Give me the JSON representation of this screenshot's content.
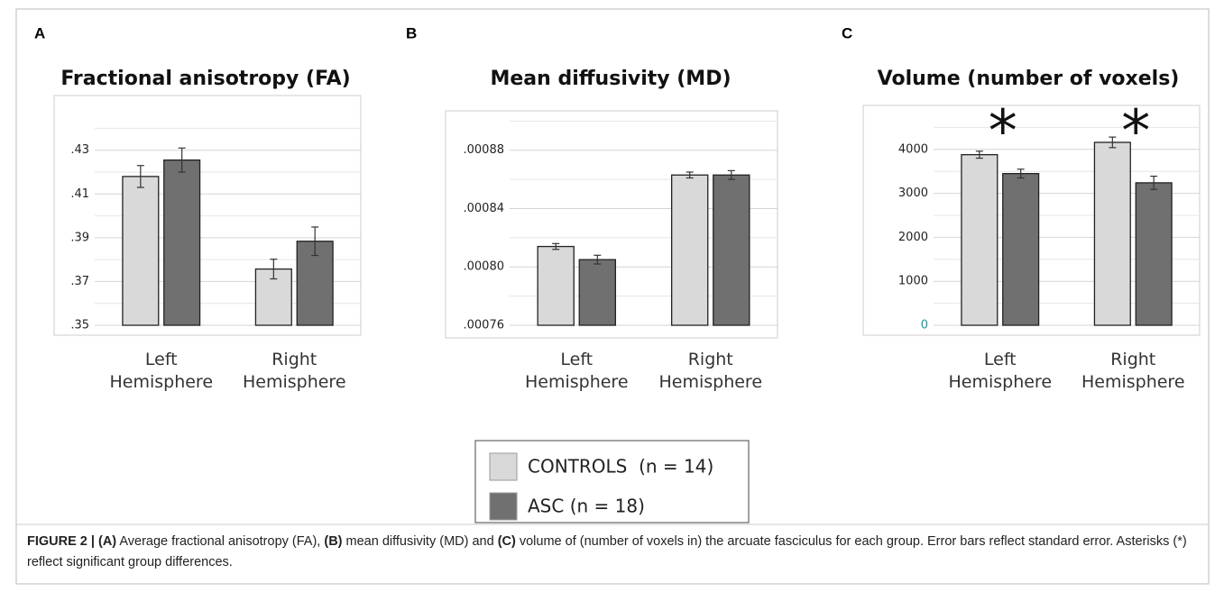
{
  "panels": [
    "A",
    "B",
    "C"
  ],
  "chart_data": [
    {
      "type": "bar",
      "title": "Fractional anisotropy (FA)",
      "categories": [
        "Left Hemisphere",
        "Right Hemisphere"
      ],
      "series": [
        {
          "values": [
            0.418,
            0.3757
          ],
          "errors": [
            0.005,
            0.0045
          ]
        },
        {
          "values": [
            0.4255,
            0.3884
          ],
          "errors": [
            0.0055,
            0.0065
          ]
        }
      ],
      "ylim": [
        0.35,
        0.455
      ],
      "yticks": [
        {
          "value": 0.35,
          "label": ".35"
        },
        {
          "value": 0.37,
          "label": ".37"
        },
        {
          "value": 0.39,
          "label": ".39"
        },
        {
          "value": 0.41,
          "label": ".41"
        },
        {
          "value": 0.43,
          "label": ".43"
        }
      ],
      "minor_yticks": [
        0.36,
        0.38,
        0.4,
        0.42,
        0.44
      ],
      "grid": true
    },
    {
      "type": "bar",
      "title": "Mean diffusivity (MD)",
      "categories": [
        "Left Hemisphere",
        "Right Hemisphere"
      ],
      "series": [
        {
          "values": [
            0.000814,
            0.000863
          ],
          "errors": [
            2e-06,
            2e-06
          ]
        },
        {
          "values": [
            0.000805,
            0.000863
          ],
          "errors": [
            3e-06,
            3e-06
          ]
        }
      ],
      "ylim": [
        0.00076,
        0.000907
      ],
      "yticks": [
        {
          "value": 0.00076,
          "label": ".00076"
        },
        {
          "value": 0.0008,
          "label": ".00080"
        },
        {
          "value": 0.00084,
          "label": ".00084"
        },
        {
          "value": 0.00088,
          "label": ".00088"
        }
      ],
      "minor_yticks": [
        0.00078,
        0.00082,
        0.00086,
        0.0009
      ],
      "grid": true
    },
    {
      "type": "bar",
      "title": "Volume (number of voxels)",
      "categories": [
        "Left Hemisphere",
        "Right Hemisphere"
      ],
      "series": [
        {
          "values": [
            3880,
            4160
          ],
          "errors": [
            80,
            120
          ]
        },
        {
          "values": [
            3450,
            3240
          ],
          "errors": [
            100,
            150
          ]
        }
      ],
      "ylim": [
        0,
        5000
      ],
      "yticks": [
        0,
        1000,
        2000,
        3000,
        4000
      ],
      "minor_yticks": [
        500,
        1500,
        2500,
        3500,
        4500
      ],
      "grid": true,
      "zero_tick_color": "#1a9a9a",
      "annotations": [
        {
          "text": "*",
          "category": 0
        },
        {
          "text": "*",
          "category": 1
        }
      ]
    }
  ],
  "legend": [
    {
      "name": "CONTROLS  (n = 14)",
      "color": "#d9d9d9"
    },
    {
      "name": "ASC (n = 18)",
      "color": "#707070"
    }
  ],
  "caption": [
    {
      "text": "FIGURE 2 | (A)",
      "bold": true
    },
    {
      "text": " Average fractional anisotropy (FA), ",
      "bold": false
    },
    {
      "text": "(B)",
      "bold": true
    },
    {
      "text": " mean diffusivity (MD) and ",
      "bold": false
    },
    {
      "text": "(C)",
      "bold": true
    },
    {
      "text": " volume of (number of voxels in) the arcuate fasciculus for each group. Error bars reflect standard error. Asterisks (*) reflect significant group differences.",
      "bold": false
    }
  ]
}
